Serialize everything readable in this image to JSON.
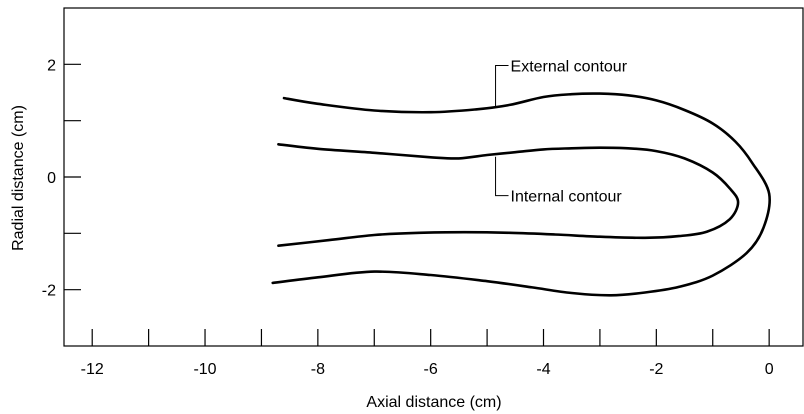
{
  "chart_data": {
    "type": "line",
    "title": "",
    "xlabel": "Axial distance (cm)",
    "ylabel": "Radial distance (cm)",
    "xlim": [
      -12.5,
      0.6
    ],
    "ylim": [
      -3.0,
      3.0
    ],
    "x_ticks": [
      -12,
      -11,
      -10,
      -9,
      -8,
      -7,
      -6,
      -5,
      -4,
      -3,
      -2,
      -1,
      0
    ],
    "x_tick_labels": [
      "-12",
      "",
      "-10",
      "",
      "-8",
      "",
      "-6",
      "",
      "-4",
      "",
      "-2",
      "",
      "0"
    ],
    "y_ticks": [
      -2,
      -1,
      0,
      1,
      2
    ],
    "y_tick_labels": [
      "-2",
      "",
      "0",
      "",
      "2"
    ],
    "grid": false,
    "legend": "none",
    "series": [
      {
        "points": [
          [
            -8.6,
            1.4
          ],
          [
            -8.0,
            1.3
          ],
          [
            -7.0,
            1.18
          ],
          [
            -6.0,
            1.15
          ],
          [
            -5.2,
            1.2
          ],
          [
            -4.6,
            1.28
          ],
          [
            -4.0,
            1.42
          ],
          [
            -3.5,
            1.47
          ],
          [
            -3.0,
            1.48
          ],
          [
            -2.5,
            1.45
          ],
          [
            -2.0,
            1.36
          ],
          [
            -1.5,
            1.19
          ],
          [
            -1.0,
            0.95
          ],
          [
            -0.6,
            0.63
          ],
          [
            -0.3,
            0.25
          ],
          [
            0.0,
            -0.3
          ],
          [
            -0.1,
            -0.9
          ],
          [
            -0.4,
            -1.35
          ],
          [
            -1.0,
            -1.75
          ],
          [
            -1.6,
            -1.95
          ],
          [
            -2.2,
            -2.05
          ],
          [
            -2.8,
            -2.1
          ],
          [
            -3.5,
            -2.06
          ],
          [
            -4.2,
            -1.96
          ],
          [
            -5.0,
            -1.85
          ],
          [
            -6.0,
            -1.74
          ],
          [
            -7.0,
            -1.68
          ],
          [
            -8.0,
            -1.78
          ],
          [
            -8.8,
            -1.88
          ]
        ],
        "color": "#000000"
      },
      {
        "points": [
          [
            -8.7,
            0.58
          ],
          [
            -8.0,
            0.5
          ],
          [
            -7.0,
            0.43
          ],
          [
            -6.0,
            0.35
          ],
          [
            -5.5,
            0.33
          ],
          [
            -5.0,
            0.39
          ],
          [
            -4.5,
            0.44
          ],
          [
            -4.0,
            0.49
          ],
          [
            -3.5,
            0.51
          ],
          [
            -3.0,
            0.52
          ],
          [
            -2.5,
            0.51
          ],
          [
            -2.0,
            0.46
          ],
          [
            -1.5,
            0.33
          ],
          [
            -1.0,
            0.08
          ],
          [
            -0.7,
            -0.2
          ],
          [
            -0.55,
            -0.45
          ],
          [
            -0.7,
            -0.75
          ],
          [
            -1.1,
            -0.97
          ],
          [
            -1.6,
            -1.05
          ],
          [
            -2.2,
            -1.08
          ],
          [
            -3.0,
            -1.06
          ],
          [
            -3.8,
            -1.02
          ],
          [
            -4.6,
            -0.99
          ],
          [
            -5.4,
            -0.98
          ],
          [
            -6.2,
            -0.99
          ],
          [
            -7.0,
            -1.03
          ],
          [
            -7.8,
            -1.12
          ],
          [
            -8.7,
            -1.22
          ]
        ],
        "color": "#000000"
      }
    ],
    "annotations": [
      {
        "text": "External contour",
        "x": -4.62,
        "y": 1.98,
        "leader_to": [
          -4.75,
          1.26
        ],
        "leader_hook_x": -4.85
      },
      {
        "text": "Internal contour",
        "x": -4.62,
        "y": -0.33,
        "leader_to": [
          -4.75,
          0.36
        ],
        "leader_hook_x": -4.85
      }
    ]
  }
}
